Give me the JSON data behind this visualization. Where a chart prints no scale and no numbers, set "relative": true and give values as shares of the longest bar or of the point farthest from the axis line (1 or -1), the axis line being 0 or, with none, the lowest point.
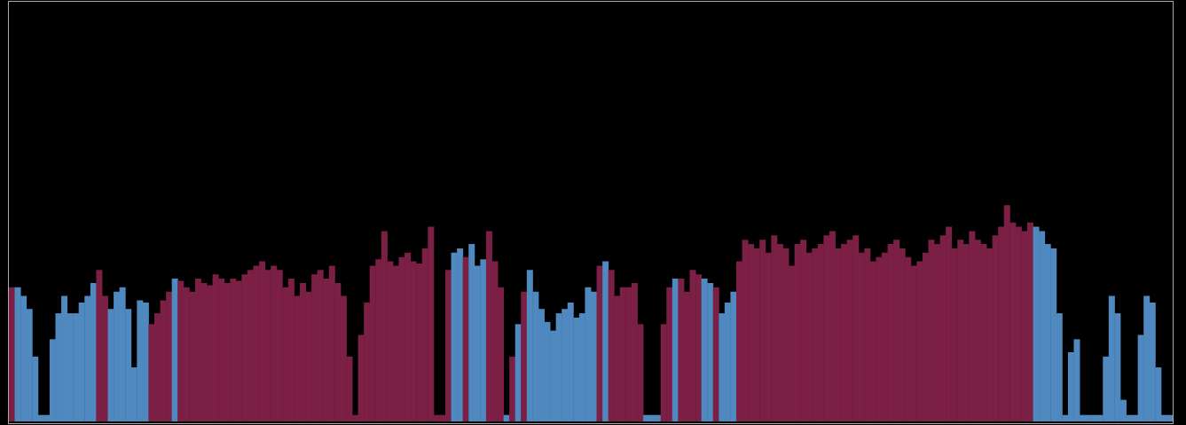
{
  "chart_data": {
    "type": "bar",
    "relative": true,
    "categories": [
      null,
      null,
      null,
      null,
      null,
      null,
      null,
      null,
      null,
      null,
      null,
      null,
      null,
      null,
      null,
      null,
      null,
      null,
      null,
      null,
      null,
      null,
      null,
      null,
      null,
      null,
      null,
      null,
      null,
      null,
      null,
      null,
      null,
      null,
      null,
      null,
      null,
      null,
      null,
      null,
      null,
      null,
      null,
      null,
      null,
      null,
      null,
      null,
      null,
      null,
      null,
      null,
      null,
      null,
      null,
      null,
      null,
      null,
      null,
      null,
      null,
      null,
      null,
      null,
      null,
      null,
      null,
      null,
      null,
      null,
      null,
      null,
      null,
      null,
      null,
      null,
      null,
      null,
      null,
      null,
      null,
      null,
      null,
      null,
      null,
      null,
      null,
      null,
      null,
      null,
      null,
      null,
      null,
      null,
      null,
      null,
      null,
      null,
      null,
      null,
      null,
      null,
      null,
      null,
      null,
      null,
      null,
      null,
      null,
      null,
      null,
      null,
      null,
      null,
      null,
      null,
      null,
      null,
      null,
      null,
      null,
      null,
      null,
      null,
      null,
      null,
      null,
      null,
      null,
      null,
      null,
      null,
      null,
      null,
      null,
      null,
      null,
      null,
      null,
      null,
      null,
      null,
      null,
      null,
      null,
      null,
      null,
      null,
      null,
      null,
      null,
      null,
      null,
      null,
      null,
      null,
      null,
      null,
      null,
      null,
      null,
      null,
      null,
      null,
      null,
      null,
      null,
      null,
      null,
      null,
      null,
      null,
      null,
      null,
      null,
      null,
      null,
      null,
      null,
      null,
      null,
      null,
      null,
      null,
      null,
      null,
      null,
      null,
      null,
      null,
      null,
      null,
      null,
      null,
      null,
      null,
      null,
      null,
      null,
      null
    ],
    "values": [
      0.62,
      0.62,
      0.58,
      0.52,
      0.3,
      0.03,
      0.03,
      0.38,
      0.5,
      0.58,
      0.5,
      0.5,
      0.55,
      0.58,
      0.64,
      0.7,
      0.58,
      0.52,
      0.6,
      0.62,
      0.52,
      0.25,
      0.56,
      0.55,
      0.45,
      0.5,
      0.56,
      0.6,
      0.66,
      0.65,
      0.62,
      0.6,
      0.66,
      0.64,
      0.63,
      0.68,
      0.66,
      0.64,
      0.66,
      0.65,
      0.68,
      0.7,
      0.72,
      0.74,
      0.7,
      0.72,
      0.7,
      0.62,
      0.66,
      0.58,
      0.64,
      0.6,
      0.68,
      0.7,
      0.66,
      0.72,
      0.64,
      0.58,
      0.3,
      0.03,
      0.4,
      0.55,
      0.72,
      0.75,
      0.88,
      0.74,
      0.72,
      0.76,
      0.78,
      0.74,
      0.73,
      0.8,
      0.9,
      0.03,
      0.03,
      0.7,
      0.78,
      0.8,
      0.76,
      0.82,
      0.72,
      0.75,
      0.88,
      0.74,
      0.62,
      0.03,
      0.3,
      0.45,
      0.6,
      0.7,
      0.6,
      0.52,
      0.46,
      0.42,
      0.5,
      0.52,
      0.55,
      0.48,
      0.5,
      0.62,
      0.6,
      0.72,
      0.74,
      0.7,
      0.58,
      0.62,
      0.62,
      0.64,
      0.45,
      0.03,
      0.03,
      0.03,
      0.45,
      0.62,
      0.66,
      0.66,
      0.6,
      0.7,
      0.68,
      0.66,
      0.64,
      0.62,
      0.5,
      0.55,
      0.6,
      0.74,
      0.84,
      0.82,
      0.8,
      0.84,
      0.78,
      0.86,
      0.82,
      0.8,
      0.72,
      0.82,
      0.84,
      0.78,
      0.8,
      0.82,
      0.86,
      0.88,
      0.8,
      0.82,
      0.84,
      0.86,
      0.78,
      0.8,
      0.74,
      0.76,
      0.78,
      0.82,
      0.84,
      0.8,
      0.76,
      0.72,
      0.74,
      0.78,
      0.84,
      0.82,
      0.86,
      0.9,
      0.8,
      0.84,
      0.82,
      0.88,
      0.84,
      0.82,
      0.8,
      0.86,
      0.9,
      1.0,
      0.92,
      0.9,
      0.88,
      0.92,
      0.9,
      0.88,
      0.82,
      0.8,
      0.5,
      0.03,
      0.32,
      0.38,
      0.03,
      0.03,
      0.03,
      0.03,
      0.3,
      0.58,
      0.5,
      0.1,
      0.03,
      0.03,
      0.4,
      0.58,
      0.55,
      0.25,
      0.03,
      0.03
    ],
    "colors": [
      "#7b1f45",
      "#4f89bf",
      "#4f89bf",
      "#4f89bf",
      "#4f89bf",
      "#4f89bf",
      "#4f89bf",
      "#4f89bf",
      "#4f89bf",
      "#4f89bf",
      "#4f89bf",
      "#4f89bf",
      "#4f89bf",
      "#4f89bf",
      "#4f89bf",
      "#7b1f45",
      "#7b1f45",
      "#4f89bf",
      "#4f89bf",
      "#4f89bf",
      "#4f89bf",
      "#4f89bf",
      "#4f89bf",
      "#4f89bf",
      "#7b1f45",
      "#7b1f45",
      "#7b1f45",
      "#7b1f45",
      "#4f89bf",
      "#7b1f45",
      "#7b1f45",
      "#7b1f45",
      "#7b1f45",
      "#7b1f45",
      "#7b1f45",
      "#7b1f45",
      "#7b1f45",
      "#7b1f45",
      "#7b1f45",
      "#7b1f45",
      "#7b1f45",
      "#7b1f45",
      "#7b1f45",
      "#7b1f45",
      "#7b1f45",
      "#7b1f45",
      "#7b1f45",
      "#7b1f45",
      "#7b1f45",
      "#7b1f45",
      "#7b1f45",
      "#7b1f45",
      "#7b1f45",
      "#7b1f45",
      "#7b1f45",
      "#7b1f45",
      "#7b1f45",
      "#7b1f45",
      "#7b1f45",
      "#7b1f45",
      "#7b1f45",
      "#7b1f45",
      "#7b1f45",
      "#7b1f45",
      "#7b1f45",
      "#7b1f45",
      "#7b1f45",
      "#7b1f45",
      "#7b1f45",
      "#7b1f45",
      "#7b1f45",
      "#7b1f45",
      "#7b1f45",
      "#7b1f45",
      "#7b1f45",
      "#7b1f45",
      "#4f89bf",
      "#4f89bf",
      "#7b1f45",
      "#4f89bf",
      "#4f89bf",
      "#4f89bf",
      "#7b1f45",
      "#7b1f45",
      "#7b1f45",
      "#4f89bf",
      "#7b1f45",
      "#4f89bf",
      "#7b1f45",
      "#4f89bf",
      "#4f89bf",
      "#4f89bf",
      "#4f89bf",
      "#4f89bf",
      "#4f89bf",
      "#4f89bf",
      "#4f89bf",
      "#4f89bf",
      "#4f89bf",
      "#4f89bf",
      "#4f89bf",
      "#7b1f45",
      "#4f89bf",
      "#7b1f45",
      "#7b1f45",
      "#7b1f45",
      "#7b1f45",
      "#7b1f45",
      "#7b1f45",
      "#4f89bf",
      "#4f89bf",
      "#4f89bf",
      "#7b1f45",
      "#7b1f45",
      "#4f89bf",
      "#7b1f45",
      "#7b1f45",
      "#7b1f45",
      "#7b1f45",
      "#4f89bf",
      "#4f89bf",
      "#7b1f45",
      "#4f89bf",
      "#4f89bf",
      "#4f89bf",
      "#7b1f45",
      "#7b1f45",
      "#7b1f45",
      "#7b1f45",
      "#7b1f45",
      "#7b1f45",
      "#7b1f45",
      "#7b1f45",
      "#7b1f45",
      "#7b1f45",
      "#7b1f45",
      "#7b1f45",
      "#7b1f45",
      "#7b1f45",
      "#7b1f45",
      "#7b1f45",
      "#7b1f45",
      "#7b1f45",
      "#7b1f45",
      "#7b1f45",
      "#7b1f45",
      "#7b1f45",
      "#7b1f45",
      "#7b1f45",
      "#7b1f45",
      "#7b1f45",
      "#7b1f45",
      "#7b1f45",
      "#7b1f45",
      "#7b1f45",
      "#7b1f45",
      "#7b1f45",
      "#7b1f45",
      "#7b1f45",
      "#7b1f45",
      "#7b1f45",
      "#7b1f45",
      "#7b1f45",
      "#7b1f45",
      "#7b1f45",
      "#7b1f45",
      "#7b1f45",
      "#7b1f45",
      "#7b1f45",
      "#7b1f45",
      "#7b1f45",
      "#7b1f45",
      "#7b1f45",
      "#7b1f45",
      "#7b1f45",
      "#7b1f45",
      "#4f89bf",
      "#4f89bf",
      "#4f89bf",
      "#4f89bf",
      "#4f89bf",
      "#4f89bf",
      "#4f89bf",
      "#4f89bf",
      "#4f89bf",
      "#4f89bf",
      "#4f89bf",
      "#4f89bf",
      "#4f89bf",
      "#4f89bf",
      "#4f89bf",
      "#4f89bf",
      "#4f89bf",
      "#4f89bf",
      "#4f89bf",
      "#4f89bf",
      "#4f89bf",
      "#4f89bf",
      "#4f89bf",
      "#4f89bf"
    ]
  }
}
